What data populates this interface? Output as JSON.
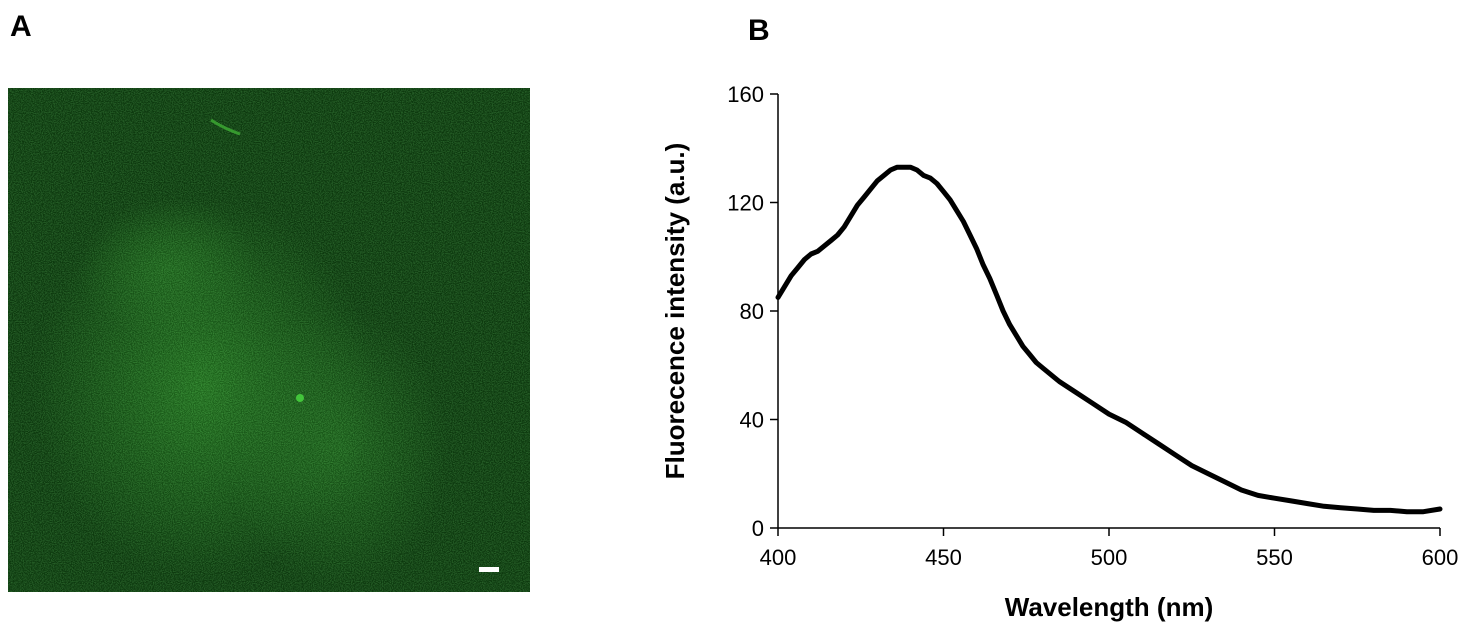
{
  "panels": {
    "a_label": "A",
    "b_label": "B"
  },
  "micrograph": {
    "description_colors": {
      "background": "#0e3a10",
      "signal": "#3fd23a"
    },
    "scale_bar_color": "#ffffff"
  },
  "chart_data": {
    "type": "line",
    "xlabel": "Wavelength (nm)",
    "ylabel": "Fluorecence intensity (a.u.)",
    "xlim": [
      400,
      600
    ],
    "ylim": [
      0,
      160
    ],
    "xticks": [
      400,
      450,
      500,
      550,
      600
    ],
    "yticks": [
      0,
      40,
      80,
      120,
      160
    ],
    "line_color": "#000000",
    "series": [
      {
        "x": [
          400,
          402,
          404,
          406,
          408,
          410,
          412,
          414,
          416,
          418,
          420,
          422,
          424,
          426,
          428,
          430,
          432,
          434,
          436,
          438,
          440,
          442,
          444,
          446,
          448,
          450,
          452,
          454,
          456,
          458,
          460,
          462,
          464,
          466,
          468,
          470,
          472,
          474,
          476,
          478,
          480,
          485,
          490,
          495,
          500,
          505,
          510,
          515,
          520,
          525,
          530,
          535,
          540,
          545,
          550,
          555,
          560,
          565,
          570,
          575,
          580,
          585,
          590,
          595,
          600
        ],
        "y": [
          85,
          89,
          93,
          96,
          99,
          101,
          102,
          104,
          106,
          108,
          111,
          115,
          119,
          122,
          125,
          128,
          130,
          132,
          133,
          133,
          133,
          132,
          130,
          129,
          127,
          124,
          121,
          117,
          113,
          108,
          103,
          97,
          92,
          86,
          80,
          75,
          71,
          67,
          64,
          61,
          59,
          54,
          50,
          46,
          42,
          39,
          35,
          31,
          27,
          23,
          20,
          17,
          14,
          12,
          11,
          10,
          9,
          8,
          7.5,
          7,
          6.5,
          6.5,
          6,
          6,
          7
        ]
      }
    ]
  }
}
